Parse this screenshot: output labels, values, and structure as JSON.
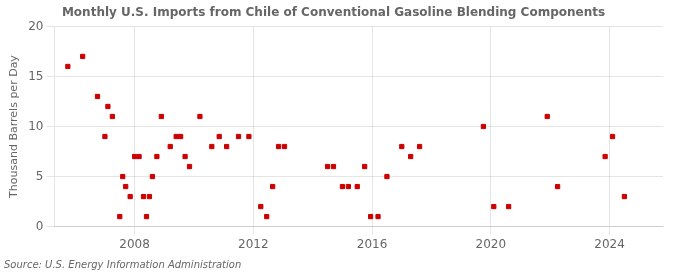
{
  "chart_data": {
    "type": "scatter",
    "title": "Monthly U.S. Imports from Chile of Conventional Gasoline Blending Components",
    "ylabel": "Thousand Barrels per Day",
    "annotations": [
      "Source: U.S. Energy Information Administration"
    ],
    "color": "#cc0000",
    "marker": "square",
    "grid": true,
    "ylim": [
      0,
      20
    ],
    "yticks": [
      0,
      5,
      10,
      15,
      20
    ],
    "xlim": [
      2005.3,
      2025.8
    ],
    "xticks": [
      2008,
      2012,
      2016,
      2020,
      2024
    ],
    "x": [
      2005.75,
      2006.25,
      2006.75,
      2007.0,
      2007.1,
      2007.25,
      2007.5,
      2007.6,
      2007.7,
      2007.85,
      2008.0,
      2008.15,
      2008.3,
      2008.4,
      2008.5,
      2008.6,
      2008.75,
      2008.9,
      2009.2,
      2009.4,
      2009.55,
      2009.7,
      2009.85,
      2010.2,
      2010.6,
      2010.85,
      2011.1,
      2011.5,
      2011.85,
      2012.25,
      2012.45,
      2012.65,
      2012.85,
      2013.05,
      2014.5,
      2014.7,
      2015.0,
      2015.2,
      2015.5,
      2015.75,
      2015.95,
      2016.2,
      2016.5,
      2017.0,
      2017.3,
      2017.6,
      2019.75,
      2020.1,
      2020.6,
      2021.9,
      2022.25,
      2023.85,
      2024.1,
      2024.5
    ],
    "values": [
      16,
      17,
      13,
      9,
      12,
      11,
      1,
      5,
      4,
      3,
      7,
      7,
      3,
      1,
      3,
      5,
      7,
      11,
      8,
      9,
      9,
      7,
      6,
      11,
      8,
      9,
      8,
      9,
      9,
      2,
      1,
      4,
      8,
      8,
      6,
      6,
      4,
      4,
      4,
      6,
      1,
      1,
      5,
      8,
      7,
      8,
      10,
      2,
      2,
      11,
      4,
      7,
      9,
      3
    ]
  }
}
